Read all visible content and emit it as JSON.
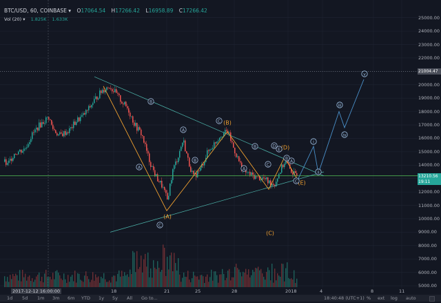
{
  "legend": {
    "symbol": "BTC/USD, 60, COINBASE",
    "o": "O",
    "o_val": "17064.54",
    "h": "H",
    "h_val": "17266.42",
    "l": "L",
    "l_val": "16958.89",
    "c": "C",
    "c_val": "17266.42"
  },
  "volume": {
    "label": "Vol (20)",
    "v1": "1.825K",
    "v2": "1.633K"
  },
  "price_labels": {
    "hline": "21004.47",
    "current": "13210.56",
    "countdown": "19:11"
  },
  "colors": {
    "up": "#26a69a",
    "down": "#ef5350",
    "wave_orange": "#f0a030",
    "wave_blue": "#4a90c9",
    "trend": "#4db6ac",
    "hline_green": "#4caf50"
  },
  "chart_data": {
    "type": "candlestick",
    "yaxis_ticks": [
      "25000.00",
      "24000.00",
      "23000.00",
      "22000.00",
      "21000.00",
      "20000.00",
      "19000.00",
      "18000.00",
      "17000.00",
      "16000.00",
      "15000.00",
      "14000.00",
      "13000.00",
      "12000.00",
      "11000.00",
      "10000.00",
      "9000.00",
      "8000.00",
      "7000.00",
      "6000.00",
      "5000.00"
    ],
    "ylim": [
      4900,
      25500
    ],
    "xaxis_ticks": [
      "18",
      "21",
      "25",
      "28",
      "2018",
      "4",
      "8",
      "11"
    ],
    "crosshair_time": "2017-12-12 16:00:00",
    "path": [
      [
        0,
        14500
      ],
      [
        10,
        14000
      ],
      [
        20,
        14900
      ],
      [
        35,
        15200
      ],
      [
        45,
        16200
      ],
      [
        55,
        16900
      ],
      [
        70,
        17600
      ],
      [
        75,
        16800
      ],
      [
        85,
        16200
      ],
      [
        100,
        16600
      ],
      [
        110,
        17300
      ],
      [
        120,
        17700
      ],
      [
        128,
        18200
      ],
      [
        137,
        18900
      ],
      [
        148,
        19600
      ],
      [
        158,
        19900
      ],
      [
        165,
        19500
      ],
      [
        175,
        18800
      ],
      [
        185,
        18200
      ],
      [
        195,
        17000
      ],
      [
        205,
        16300
      ],
      [
        215,
        14500
      ],
      [
        225,
        13200
      ],
      [
        235,
        12400
      ],
      [
        242,
        11400
      ],
      [
        250,
        13600
      ],
      [
        258,
        14700
      ],
      [
        265,
        15900
      ],
      [
        272,
        14400
      ],
      [
        280,
        13100
      ],
      [
        290,
        13700
      ],
      [
        300,
        14900
      ],
      [
        310,
        15600
      ],
      [
        320,
        16300
      ],
      [
        330,
        16500
      ],
      [
        338,
        15300
      ],
      [
        345,
        14400
      ],
      [
        352,
        13600
      ],
      [
        362,
        13300
      ],
      [
        372,
        13100
      ],
      [
        382,
        13000
      ],
      [
        390,
        12700
      ],
      [
        398,
        12600
      ],
      [
        405,
        13500
      ],
      [
        413,
        14300
      ],
      [
        420,
        13700
      ],
      [
        428,
        13200
      ],
      [
        435,
        13200
      ]
    ],
    "wave_labels": {
      "orange": [
        "(A)",
        "(B)",
        "(C)",
        "(D)",
        "(E)"
      ],
      "blue_small": [
        "A",
        "B",
        "C",
        "A",
        "B",
        "C",
        "A",
        "B",
        "C",
        "D",
        "E",
        "A",
        "B",
        "C"
      ],
      "projection": [
        "i",
        "ii",
        "iii",
        "iv",
        "v"
      ]
    }
  },
  "xaxis": {
    "date_label": "2017-12-12 16:00:00"
  },
  "toolbar": {
    "timeframes": [
      "1d",
      "5d",
      "1m",
      "3m",
      "6m",
      "YTD",
      "1y",
      "5y",
      "All",
      "Go to..."
    ],
    "time": "18:40:48 (UTC+1)",
    "pct": "%",
    "ext": "ext",
    "log": "log",
    "auto": "auto"
  }
}
